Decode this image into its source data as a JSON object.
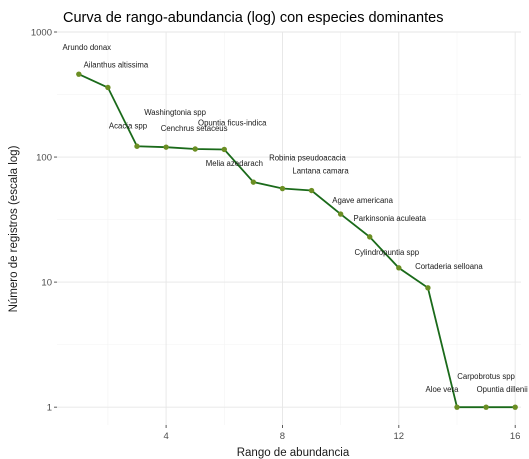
{
  "chart_data": {
    "type": "line",
    "title": "Curva de rango-abundancia (log) con especies dominantes",
    "xlabel": "Rango de abundancia",
    "ylabel": "Número de registros (escala log)",
    "x_scale": "linear",
    "y_scale": "log",
    "xlim": [
      0.25,
      16.2
    ],
    "ylim": [
      0.72,
      1000
    ],
    "x_ticks": [
      4,
      8,
      12,
      16
    ],
    "y_ticks": [
      1,
      10,
      100,
      1000
    ],
    "y_tick_labels": [
      "1",
      "10",
      "100",
      "1000"
    ],
    "grid": true,
    "line_color": "#1a6a1a",
    "point_color": "#6b8e23",
    "series": [
      {
        "x": [
          1,
          2,
          3,
          4,
          5,
          6,
          7,
          8,
          9,
          10,
          11,
          12,
          13,
          14,
          15,
          16
        ],
        "values": [
          460,
          360,
          122,
          120,
          116,
          115,
          63,
          56,
          54,
          35,
          23,
          13,
          9,
          1,
          1,
          1
        ]
      }
    ],
    "annotations": [
      {
        "text": "Arundo donax",
        "x": 1
      },
      {
        "text": "Ailanthus altissima",
        "x": 2
      },
      {
        "text": "Acacia spp",
        "x": 3
      },
      {
        "text": "Washingtonia spp",
        "x": 4
      },
      {
        "text": "Cenchrus setaceus",
        "x": 5
      },
      {
        "text": "Opuntia ficus-indica",
        "x": 6
      },
      {
        "text": "Melia azedarach",
        "x": 7
      },
      {
        "text": "Robinia pseudoacacia",
        "x": 8
      },
      {
        "text": "Lantana camara",
        "x": 9
      },
      {
        "text": "Agave americana",
        "x": 10
      },
      {
        "text": "Parkinsonia aculeata",
        "x": 11
      },
      {
        "text": "Cylindropuntia spp",
        "x": 12
      },
      {
        "text": "Cortaderia selloana",
        "x": 13
      },
      {
        "text": "Aloe vera",
        "x": 14
      },
      {
        "text": "Carpobrotus spp",
        "x": 15
      },
      {
        "text": "Opuntia dillenii",
        "x": 16
      }
    ]
  }
}
